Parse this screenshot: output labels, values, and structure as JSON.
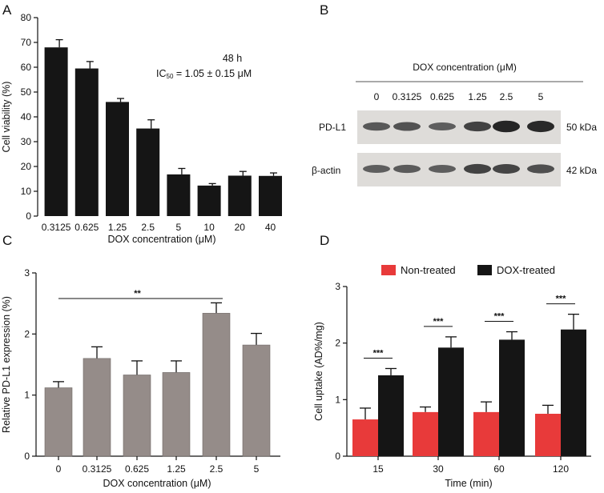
{
  "panels": {
    "A": "A",
    "B": "B",
    "C": "C",
    "D": "D"
  },
  "colors": {
    "black_bar": "#151515",
    "gray_bar": "#958c89",
    "red_bar": "#e83a3a",
    "axis": "#111111",
    "blot_bg": "#dedcd9"
  },
  "blot": {
    "header": "DOX concentration (μM)",
    "lanes": [
      "0",
      "0.3125",
      "0.625",
      "1.25",
      "2.5",
      "5"
    ],
    "rows": [
      {
        "name": "PD-L1",
        "size": "50 kDa",
        "intensity": [
          0.55,
          0.6,
          0.5,
          0.72,
          0.95,
          0.92
        ]
      },
      {
        "name": "β-actin",
        "size": "42 kDa",
        "intensity": [
          0.5,
          0.52,
          0.5,
          0.72,
          0.7,
          0.62
        ]
      }
    ]
  },
  "chart_data": [
    {
      "panel": "A",
      "type": "bar",
      "categories": [
        "0.3125",
        "0.625",
        "1.25",
        "2.5",
        "5",
        "10",
        "20",
        "40"
      ],
      "values": [
        68,
        59.5,
        46,
        35.3,
        16.8,
        12.3,
        16.3,
        16.2
      ],
      "errors": [
        3.1,
        2.8,
        1.4,
        3.5,
        2.4,
        0.8,
        1.7,
        1.2
      ],
      "title": "",
      "xlabel": "DOX concentration (μM)",
      "ylabel": "Cell viability (%)",
      "ylim": [
        0,
        80
      ],
      "yticks": [
        "0",
        "10",
        "20",
        "30",
        "40",
        "50",
        "60",
        "70",
        "80"
      ],
      "annotation_line1": "48 h",
      "annotation_line2_prefix": "IC",
      "annotation_line2_sub": "50",
      "annotation_line2_rest": " = 1.05 ± 0.15 μM"
    },
    {
      "panel": "C",
      "type": "bar",
      "categories": [
        "0",
        "0.3125",
        "0.625",
        "1.25",
        "2.5",
        "5"
      ],
      "values": [
        1.12,
        1.6,
        1.33,
        1.37,
        2.34,
        1.82
      ],
      "errors": [
        0.1,
        0.19,
        0.23,
        0.19,
        0.17,
        0.19
      ],
      "xlabel": "DOX concentration (μM)",
      "ylabel": "Relative PD-L1 expression (%)",
      "ylim": [
        0,
        3
      ],
      "yticks": [
        "0",
        "1",
        "2",
        "3"
      ],
      "significance": {
        "from_category": "0",
        "to_category": "2.5",
        "label": "**"
      }
    },
    {
      "panel": "D",
      "type": "bar",
      "categories": [
        "15",
        "30",
        "60",
        "120"
      ],
      "series": [
        {
          "name": "Non-treated",
          "values": [
            0.65,
            0.78,
            0.78,
            0.75
          ],
          "errors": [
            0.2,
            0.09,
            0.18,
            0.15
          ]
        },
        {
          "name": "DOX-treated",
          "values": [
            1.43,
            1.92,
            2.06,
            2.24
          ],
          "errors": [
            0.12,
            0.19,
            0.14,
            0.27
          ]
        }
      ],
      "xlabel": "Time (min)",
      "ylabel": "Cell uptake (AD%/mg)",
      "ylim": [
        0,
        3
      ],
      "yticks": [
        "0",
        "1",
        "2",
        "3"
      ],
      "significance_label": "***"
    }
  ]
}
